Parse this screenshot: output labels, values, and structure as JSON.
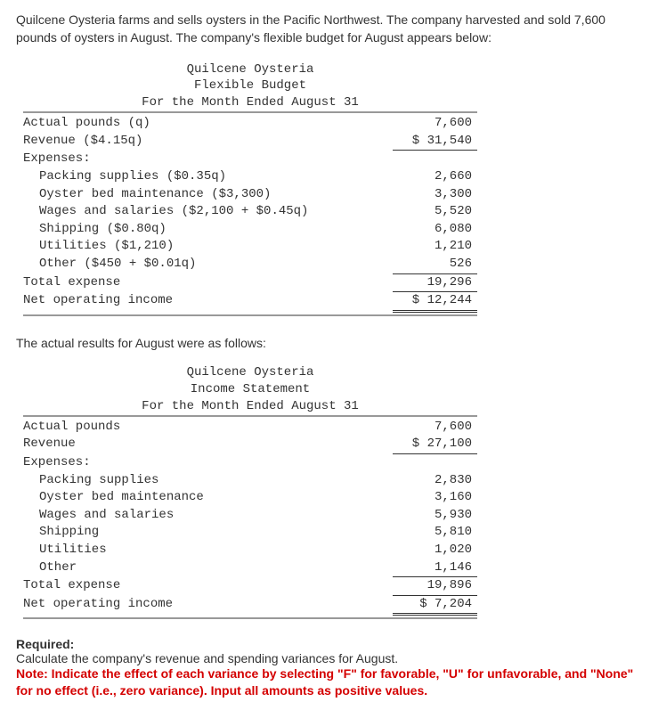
{
  "intro": "Quilcene Oysteria farms and sells oysters in the Pacific Northwest. The company harvested and sold 7,600 pounds of oysters in August. The company's flexible budget for August appears below:",
  "flex": {
    "header_line1": "Quilcene Oysteria",
    "header_line2": "Flexible Budget",
    "header_line3": "For the Month Ended August 31",
    "rows": {
      "pounds_label": "Actual pounds (q)",
      "pounds_value": "7,600",
      "revenue_label": "Revenue ($4.15q)",
      "revenue_value": "$ 31,540",
      "expenses_label": "Expenses:",
      "packing_label": "Packing supplies ($0.35q)",
      "packing_value": "2,660",
      "oyster_label": "Oyster bed maintenance ($3,300)",
      "oyster_value": "3,300",
      "wages_label": "Wages and salaries ($2,100 + $0.45q)",
      "wages_value": "5,520",
      "shipping_label": "Shipping ($0.80q)",
      "shipping_value": "6,080",
      "utilities_label": "Utilities ($1,210)",
      "utilities_value": "1,210",
      "other_label": "Other ($450 + $0.01q)",
      "other_value": "526",
      "total_label": "Total expense",
      "total_value": "19,296",
      "noi_label": "Net operating income",
      "noi_value": "$ 12,244"
    }
  },
  "actual_intro": "The actual results for August were as follows:",
  "actual": {
    "header_line1": "Quilcene Oysteria",
    "header_line2": "Income Statement",
    "header_line3": "For the Month Ended August 31",
    "rows": {
      "pounds_label": "Actual pounds",
      "pounds_value": "7,600",
      "revenue_label": "Revenue",
      "revenue_value": "$ 27,100",
      "expenses_label": "Expenses:",
      "packing_label": "Packing supplies",
      "packing_value": "2,830",
      "oyster_label": "Oyster bed maintenance",
      "oyster_value": "3,160",
      "wages_label": "Wages and salaries",
      "wages_value": "5,930",
      "shipping_label": "Shipping",
      "shipping_value": "5,810",
      "utilities_label": "Utilities",
      "utilities_value": "1,020",
      "other_label": "Other",
      "other_value": "1,146",
      "total_label": "Total expense",
      "total_value": "19,896",
      "noi_label": "Net operating income",
      "noi_value": "$ 7,204"
    }
  },
  "required_title": "Required:",
  "required_text": "Calculate the company's revenue and spending variances for August.",
  "note": "Note: Indicate the effect of each variance by selecting \"F\" for favorable, \"U\" for unfavorable, and \"None\" for no effect (i.e., zero variance). Input all amounts as positive values."
}
